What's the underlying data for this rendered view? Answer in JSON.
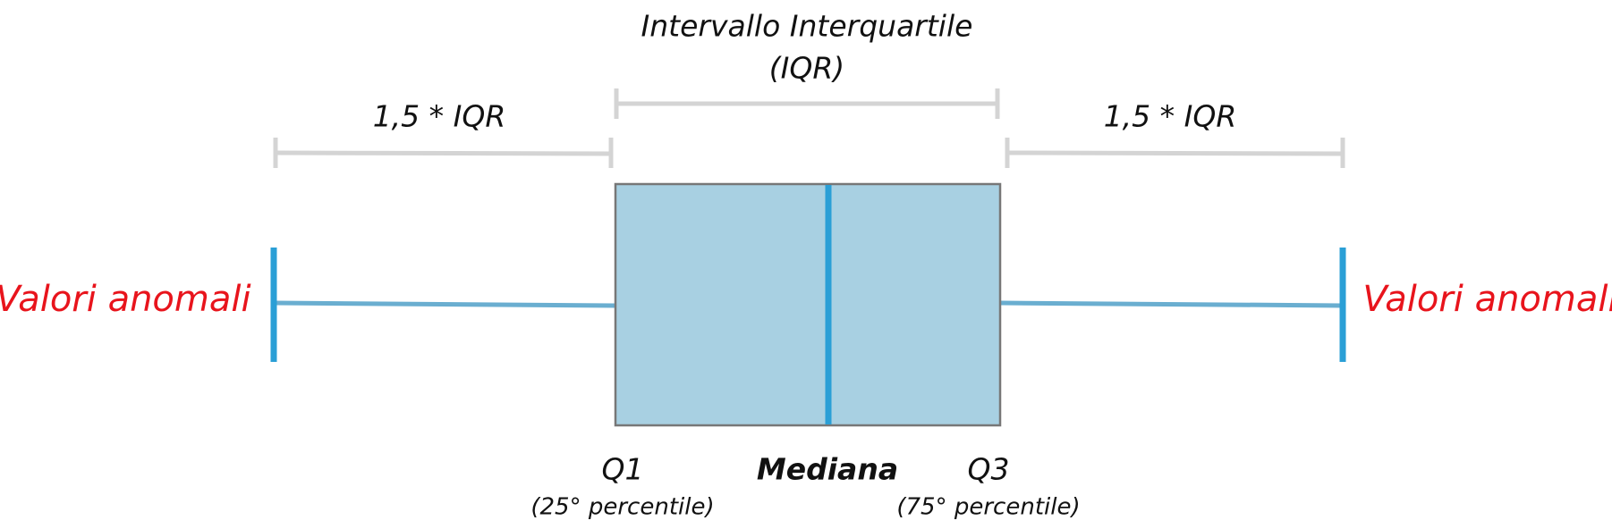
{
  "title": {
    "line1": "Intervallo Interquartile",
    "line2": "(IQR)"
  },
  "brackets": {
    "left": "1,5 * IQR",
    "right": "1,5 * IQR"
  },
  "outliers": {
    "left": "Valori anomali",
    "right": "Valori anomali"
  },
  "labels": {
    "q1": "Q1",
    "q1_note": "(25° percentile)",
    "median": "Mediana",
    "q3": "Q3",
    "q3_note": "(75° percentile)"
  }
}
